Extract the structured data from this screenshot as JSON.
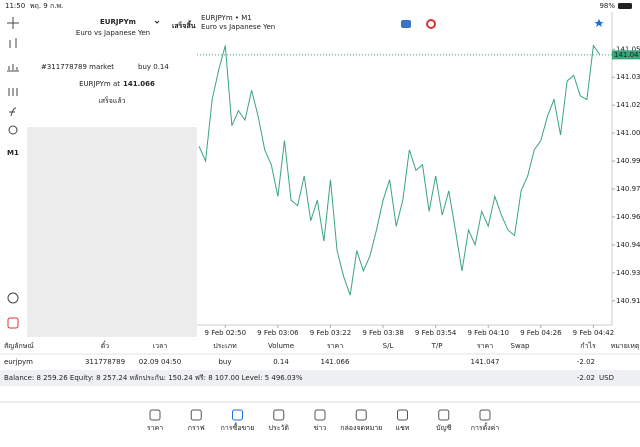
{
  "status_bar": {
    "time": "11:50",
    "date": "พฤ. 9 ก.พ.",
    "battery": "98%"
  },
  "toolbar": {
    "timeframe": "M1"
  },
  "order_panel": {
    "symbol": "EURJPYm",
    "description": "Euro vs Japanese Yen",
    "done": "เสร็จสิ้น",
    "line1_prefix": "#311778789 market",
    "line1_action": "buy 0.14",
    "line2_prefix": "EURJPYm at",
    "line2_price": "141.066",
    "status": "เสร็จแล้ว"
  },
  "chart_data": {
    "type": "line",
    "title": "EURJPYm • M1",
    "subtitle": "Euro vs Japanese Yen",
    "series": [
      {
        "color": "#3aa57a",
        "values": [
          140.998,
          140.99,
          141.023,
          141.039,
          141.052,
          141.009,
          141.017,
          141.012,
          141.028,
          141.014,
          140.996,
          140.988,
          140.971,
          141.001,
          140.969,
          140.966,
          140.982,
          140.958,
          140.969,
          140.947,
          140.98,
          140.942,
          140.928,
          140.918,
          140.942,
          140.931,
          140.939,
          140.953,
          140.969,
          140.98,
          140.955,
          140.969,
          140.996,
          140.985,
          140.988,
          140.963,
          140.982,
          140.961,
          140.974,
          140.953,
          140.931,
          140.953,
          140.945,
          140.963,
          140.955,
          140.971,
          140.961,
          140.953,
          140.95,
          140.974,
          140.982,
          140.996,
          141.001,
          141.014,
          141.023,
          141.004,
          141.033,
          141.036,
          141.025,
          141.023,
          141.052,
          141.047
        ]
      }
    ],
    "price_line": 141.047,
    "ylim": [
      140.902,
      141.07
    ],
    "yticks": [
      {
        "value": 141.05,
        "label": "141.050"
      },
      {
        "value": 141.035,
        "label": "141.035"
      },
      {
        "value": 141.02,
        "label": "141.020"
      },
      {
        "value": 141.005,
        "label": "141.005"
      },
      {
        "value": 140.99,
        "label": "140.990"
      },
      {
        "value": 140.975,
        "label": "140.975"
      },
      {
        "value": 140.96,
        "label": "140.960"
      },
      {
        "value": 140.945,
        "label": "140.945"
      },
      {
        "value": 140.93,
        "label": "140.930"
      },
      {
        "value": 140.915,
        "label": "140.915"
      }
    ],
    "xlim": [
      0,
      61
    ],
    "xticks": [
      {
        "value": 4,
        "label": "9 Feb 02:50"
      },
      {
        "value": 12,
        "label": "9 Feb 03:06"
      },
      {
        "value": 20,
        "label": "9 Feb 03:22"
      },
      {
        "value": 28,
        "label": "9 Feb 03:38"
      },
      {
        "value": 36,
        "label": "9 Feb 03:54"
      },
      {
        "value": 44,
        "label": "9 Feb 04:10"
      },
      {
        "value": 52,
        "label": "9 Feb 04:26"
      },
      {
        "value": 60,
        "label": "9 Feb 04:42"
      }
    ]
  },
  "table": {
    "headers": [
      "สัญลักษณ์",
      "ตั๋ว",
      "เวลา",
      "ประเภท",
      "Volume",
      "ราคา",
      "S/L",
      "T/P",
      "ราคา",
      "Swap",
      "กำไร",
      "หมายเหตุ"
    ],
    "rows": [
      {
        "symbol": "eurjpym",
        "ticket": "311778789",
        "time": "02.09 04:50",
        "type": "buy",
        "volume": "0.14",
        "price": "141.066",
        "current_price": "141.047",
        "profit": "-2.02"
      }
    ],
    "balance": "Balance: 8 259.26 Equity: 8 257.24 หลักประกัน: 150.24 ฟรี: 8 107.00 Level: 5 496.03%",
    "total_profit": "-2.02",
    "currency": "USD"
  },
  "nav": [
    "ราคา",
    "กราฟ",
    "การซื้อขาย",
    "ประวัติ",
    "ข่าว",
    "กล่องจดหมาย",
    "แชท",
    "บัญชี",
    "การตั้งค่า"
  ]
}
